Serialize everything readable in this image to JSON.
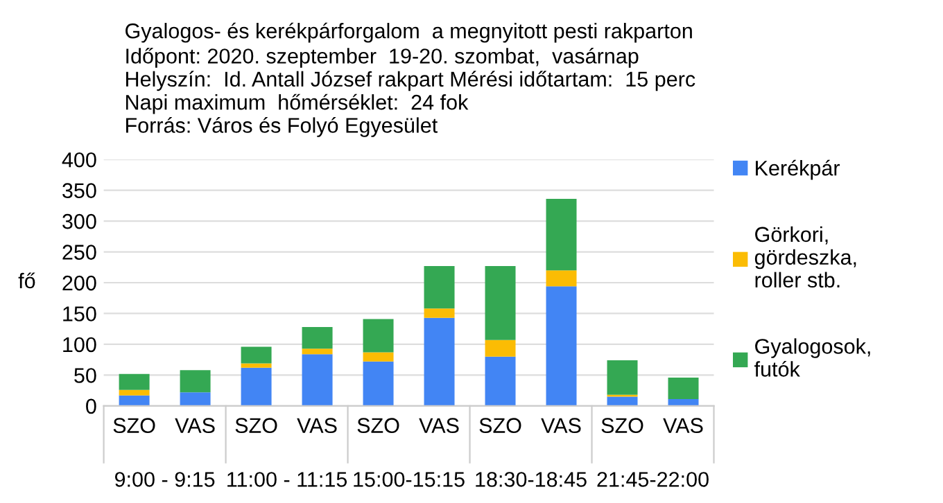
{
  "chart_data": {
    "type": "bar",
    "stacked": true,
    "title": "Gyalogos- és kerékpárforgalom  a megnyitott pesti rakparton",
    "subtitle": "Időpont: 2020. szeptember  19-20. szombat,  vasárnap\nHelyszín:  Id. Antall József rakpart Mérési időtartam:  15 perc\nNapi maximum  hőmérséklet:  24 fok\nForrás: Város és Folyó Egyesület",
    "ylabel": "fő",
    "categories": [
      "SZO",
      "VAS",
      "SZO",
      "VAS",
      "SZO",
      "VAS",
      "SZO",
      "VAS",
      "SZO",
      "VAS"
    ],
    "annotations": [
      "9:00 - 9:15",
      "11:00 - 11:15",
      "15:00-15:15",
      "18:30-18:45",
      "21:45-22:00"
    ],
    "series": [
      {
        "name": "Kerékpár",
        "color": "#4285f4",
        "values": [
          17,
          22,
          62,
          84,
          72,
          143,
          80,
          194,
          15,
          11
        ]
      },
      {
        "name": "Görkori,\ngördeszka,\nroller stb.",
        "color": "#fbbc04",
        "values": [
          9,
          0,
          7,
          9,
          15,
          15,
          27,
          26,
          3,
          0
        ]
      },
      {
        "name": "Gyalogosok,\nfutók",
        "color": "#34a853",
        "values": [
          26,
          36,
          27,
          35,
          54,
          69,
          120,
          116,
          56,
          35
        ]
      }
    ],
    "ylim": [
      0,
      400
    ],
    "yticks": [
      0,
      50,
      100,
      150,
      200,
      250,
      300,
      350,
      400
    ],
    "grid": "y",
    "legend": "right"
  }
}
